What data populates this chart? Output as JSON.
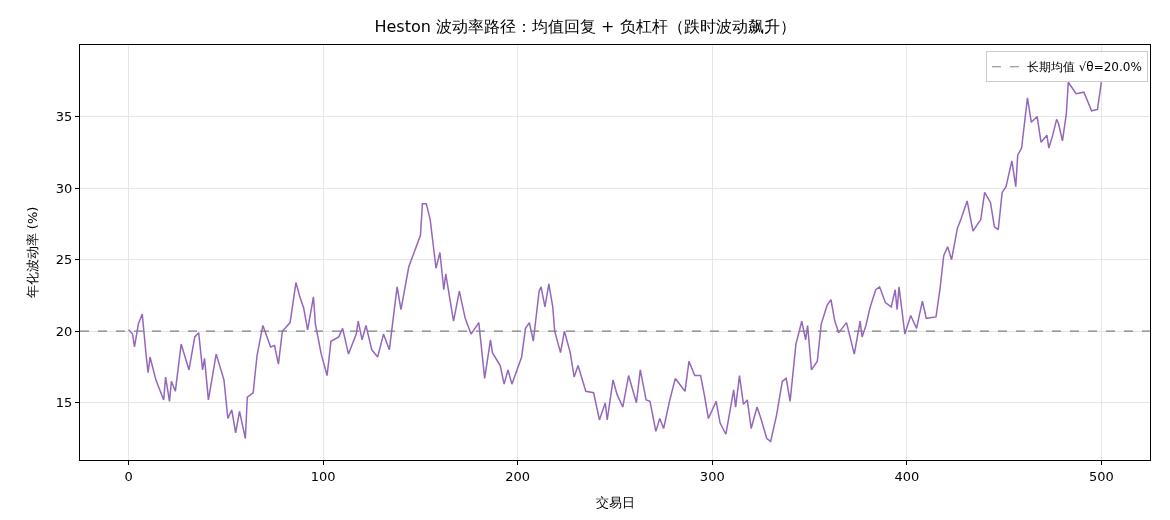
{
  "chart_data": {
    "type": "line",
    "title": "Heston 波动率路径：均值回复 + 负杠杆（跌时波动飙升）",
    "xlabel": "交易日",
    "ylabel": "年化波动率 (%)",
    "xlim": [
      -25,
      525
    ],
    "xticks": [
      0,
      100,
      200,
      300,
      400,
      500
    ],
    "ylim": [
      11,
      40
    ],
    "yticks": [
      15,
      20,
      25,
      30,
      35
    ],
    "grid": true,
    "legend": "top right",
    "marker": "none",
    "line_style": "solid",
    "ref_lines": [
      {
        "axis": "y",
        "value": 20,
        "label": "长期均值 √θ=20.0%",
        "color": "#808080",
        "line_style": "dashed"
      }
    ],
    "series": [
      {
        "color": "#9467bd",
        "x": [
          0,
          2,
          3,
          5,
          7,
          9,
          10,
          11,
          14,
          18,
          19,
          21,
          22,
          24,
          27,
          31,
          34,
          36,
          38,
          39,
          41,
          45,
          49,
          51,
          53,
          55,
          57,
          60,
          61,
          64,
          66,
          69,
          73,
          75,
          77,
          79,
          83,
          86,
          88,
          90,
          92,
          95,
          96,
          99,
          102,
          104,
          108,
          110,
          113,
          117,
          118,
          120,
          122,
          125,
          128,
          131,
          134,
          138,
          140,
          144,
          150,
          151,
          153,
          155,
          158,
          160,
          162,
          163,
          167,
          170,
          173,
          176,
          180,
          183,
          186,
          187,
          191,
          193,
          195,
          197,
          202,
          204,
          206,
          208,
          211,
          212,
          214,
          216,
          218,
          219,
          222,
          224,
          227,
          229,
          231,
          235,
          239,
          242,
          245,
          246,
          249,
          251,
          254,
          257,
          261,
          263,
          266,
          268,
          271,
          273,
          275,
          278,
          281,
          286,
          288,
          291,
          294,
          296,
          298,
          302,
          304,
          307,
          311,
          312,
          314,
          316,
          318,
          320,
          323,
          325,
          328,
          330,
          333,
          336,
          338,
          340,
          343,
          346,
          348,
          349,
          351,
          354,
          356,
          359,
          361,
          363,
          365,
          369,
          373,
          376,
          377,
          379,
          381,
          384,
          386,
          389,
          392,
          394,
          395,
          396,
          399,
          402,
          405,
          408,
          410,
          415,
          417,
          419,
          421,
          423,
          426,
          428,
          431,
          434,
          438,
          440,
          443,
          445,
          447,
          449,
          451,
          454,
          456,
          457,
          459,
          462,
          464,
          467,
          469,
          472,
          473,
          475,
          477,
          478,
          480,
          482,
          483,
          487,
          491,
          495,
          498,
          500
        ],
        "values": [
          20.1,
          19.8,
          18.9,
          20.5,
          21.2,
          18.3,
          17.1,
          18.2,
          16.6,
          15.2,
          16.8,
          15.1,
          16.5,
          15.8,
          19.1,
          17.3,
          19.6,
          19.9,
          17.3,
          18.1,
          15.2,
          18.4,
          16.6,
          13.9,
          14.5,
          12.9,
          14.4,
          12.5,
          15.4,
          15.7,
          18.3,
          20.4,
          18.9,
          19.0,
          17.7,
          20.0,
          20.6,
          23.4,
          22.4,
          21.6,
          20.1,
          22.4,
          20.5,
          18.4,
          16.9,
          19.3,
          19.6,
          20.2,
          18.4,
          19.8,
          20.7,
          19.4,
          20.4,
          18.7,
          18.2,
          19.8,
          18.7,
          23.1,
          21.5,
          24.5,
          26.7,
          28.9,
          28.9,
          27.8,
          24.4,
          25.5,
          22.9,
          24.0,
          20.7,
          22.8,
          20.9,
          19.8,
          20.6,
          16.7,
          19.4,
          18.5,
          17.6,
          16.3,
          17.3,
          16.3,
          18.2,
          20.2,
          20.6,
          19.3,
          22.8,
          23.1,
          21.7,
          23.3,
          21.7,
          20.0,
          18.5,
          20.0,
          18.5,
          16.8,
          17.6,
          15.8,
          15.7,
          13.8,
          15.0,
          13.8,
          16.6,
          15.6,
          14.7,
          16.9,
          15.0,
          17.3,
          15.2,
          15.1,
          13.0,
          13.9,
          13.2,
          15.1,
          16.7,
          15.8,
          17.9,
          16.9,
          16.9,
          15.5,
          13.9,
          15.1,
          13.6,
          12.8,
          15.9,
          14.7,
          16.9,
          14.9,
          15.2,
          13.2,
          14.7,
          13.9,
          12.5,
          12.3,
          14.1,
          16.5,
          16.7,
          15.1,
          19.1,
          20.7,
          19.4,
          20.4,
          17.3,
          17.9,
          20.5,
          21.8,
          22.2,
          20.7,
          19.9,
          20.6,
          18.4,
          20.7,
          19.6,
          20.4,
          21.6,
          22.9,
          23.1,
          22.0,
          21.7,
          22.9,
          21.5,
          23.1,
          19.8,
          21.1,
          20.2,
          22.1,
          20.9,
          21.0,
          22.9,
          25.3,
          25.9,
          25.0,
          27.2,
          27.9,
          29.1,
          27.0,
          27.8,
          29.7,
          29.0,
          27.3,
          27.1,
          29.7,
          30.1,
          31.9,
          30.1,
          32.3,
          32.8,
          36.3,
          34.6,
          35.0,
          33.2,
          33.7,
          32.8,
          33.7,
          34.8,
          34.5,
          33.3,
          35.2,
          37.4,
          36.6,
          36.7,
          35.4,
          35.5,
          37.4
        ]
      }
    ]
  }
}
